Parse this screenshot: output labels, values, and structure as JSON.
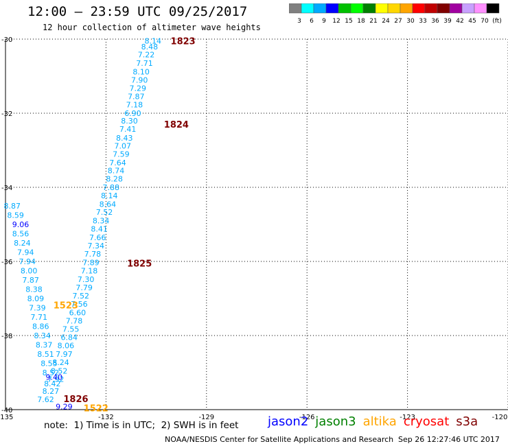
{
  "header": {
    "title": "12:00 — 23:59 UTC 09/25/2017",
    "subtitle": "12 hour collection of altimeter wave heights"
  },
  "colorbar": {
    "colors": [
      "#808080",
      "#00ffff",
      "#00aaff",
      "#0000ff",
      "#00c000",
      "#00ff00",
      "#008000",
      "#ffff00",
      "#ffd700",
      "#ffa500",
      "#ff0000",
      "#c00000",
      "#800000",
      "#a000a0",
      "#c8a0ff",
      "#ff90ff",
      "#000000"
    ],
    "labels": [
      "3",
      "6",
      "9",
      "12",
      "15",
      "18",
      "21",
      "24",
      "27",
      "30",
      "33",
      "36",
      "39",
      "42",
      "45",
      "70",
      "(ft)"
    ]
  },
  "chart_data": {
    "type": "scatter",
    "title": "12:00 — 23:59 UTC 09/25/2017",
    "subtitle": "12 hour collection of altimeter wave heights",
    "xlim": [
      -135,
      -120
    ],
    "ylim": [
      -40,
      -30
    ],
    "x_ticks": [
      "-135",
      "-132",
      "-129",
      "-126",
      "-123",
      "-120"
    ],
    "y_ticks": [
      "-30",
      "-32",
      "-34",
      "-36",
      "-38",
      "-40"
    ],
    "grid": true,
    "points": [
      {
        "x": -130.6,
        "y": -30.05,
        "v": "8.14",
        "c": "#00aaff"
      },
      {
        "x": -130.7,
        "y": -30.2,
        "v": "8.48",
        "c": "#00aaff"
      },
      {
        "x": -130.8,
        "y": -30.42,
        "v": "7.22",
        "c": "#00aaff"
      },
      {
        "x": -130.85,
        "y": -30.65,
        "v": "7.71",
        "c": "#00aaff"
      },
      {
        "x": -130.95,
        "y": -30.88,
        "v": "8.10",
        "c": "#00aaff"
      },
      {
        "x": -131.0,
        "y": -31.1,
        "v": "7.90",
        "c": "#00aaff"
      },
      {
        "x": -131.05,
        "y": -31.32,
        "v": "7.29",
        "c": "#00aaff"
      },
      {
        "x": -131.1,
        "y": -31.55,
        "v": "7.87",
        "c": "#00aaff"
      },
      {
        "x": -131.15,
        "y": -31.77,
        "v": "7.18",
        "c": "#00aaff"
      },
      {
        "x": -131.2,
        "y": -32.0,
        "v": "6.90",
        "c": "#00aaff"
      },
      {
        "x": -131.3,
        "y": -32.2,
        "v": "8.30",
        "c": "#00aaff"
      },
      {
        "x": -131.35,
        "y": -32.43,
        "v": "7.41",
        "c": "#00aaff"
      },
      {
        "x": -131.45,
        "y": -32.67,
        "v": "8.43",
        "c": "#00aaff"
      },
      {
        "x": -131.5,
        "y": -32.88,
        "v": "7.07",
        "c": "#00aaff"
      },
      {
        "x": -131.55,
        "y": -33.1,
        "v": "7.59",
        "c": "#00aaff"
      },
      {
        "x": -131.65,
        "y": -33.33,
        "v": "7.64",
        "c": "#00aaff"
      },
      {
        "x": -131.7,
        "y": -33.55,
        "v": "8.74",
        "c": "#00aaff"
      },
      {
        "x": -131.75,
        "y": -33.77,
        "v": "8.28",
        "c": "#00aaff"
      },
      {
        "x": -131.85,
        "y": -34.0,
        "v": "7.88",
        "c": "#00aaff"
      },
      {
        "x": -131.9,
        "y": -34.22,
        "v": "8.14",
        "c": "#00aaff"
      },
      {
        "x": -131.95,
        "y": -34.45,
        "v": "8.64",
        "c": "#00aaff"
      },
      {
        "x": -132.05,
        "y": -34.67,
        "v": "7.52",
        "c": "#00aaff"
      },
      {
        "x": -132.15,
        "y": -34.9,
        "v": "8.34",
        "c": "#00aaff"
      },
      {
        "x": -132.2,
        "y": -35.12,
        "v": "8.41",
        "c": "#00aaff"
      },
      {
        "x": -132.25,
        "y": -35.35,
        "v": "7.66",
        "c": "#00aaff"
      },
      {
        "x": -132.3,
        "y": -35.57,
        "v": "7.34",
        "c": "#00aaff"
      },
      {
        "x": -132.4,
        "y": -35.8,
        "v": "7.78",
        "c": "#00aaff"
      },
      {
        "x": -132.45,
        "y": -36.03,
        "v": "7.89",
        "c": "#00aaff"
      },
      {
        "x": -132.5,
        "y": -36.25,
        "v": "7.18",
        "c": "#00aaff"
      },
      {
        "x": -132.6,
        "y": -36.48,
        "v": "7.30",
        "c": "#00aaff"
      },
      {
        "x": -132.65,
        "y": -36.7,
        "v": "7.79",
        "c": "#00aaff"
      },
      {
        "x": -132.75,
        "y": -36.93,
        "v": "7.52",
        "c": "#00aaff"
      },
      {
        "x": -132.8,
        "y": -37.15,
        "v": "7.56",
        "c": "#00aaff"
      },
      {
        "x": -132.85,
        "y": -37.38,
        "v": "6.60",
        "c": "#00aaff"
      },
      {
        "x": -132.95,
        "y": -37.6,
        "v": "7.78",
        "c": "#00aaff"
      },
      {
        "x": -133.05,
        "y": -37.82,
        "v": "7.55",
        "c": "#00aaff"
      },
      {
        "x": -133.1,
        "y": -38.05,
        "v": "6.84",
        "c": "#00aaff"
      },
      {
        "x": -133.2,
        "y": -38.27,
        "v": "8.06",
        "c": "#00aaff"
      },
      {
        "x": -133.25,
        "y": -38.5,
        "v": "7.97",
        "c": "#00aaff"
      },
      {
        "x": -133.35,
        "y": -38.72,
        "v": "8.24",
        "c": "#00aaff"
      },
      {
        "x": -133.4,
        "y": -38.95,
        "v": "8.52",
        "c": "#00aaff"
      },
      {
        "x": -133.5,
        "y": -39.18,
        "v": "7.92",
        "c": "#00aaff"
      },
      {
        "x": -134.8,
        "y": -34.5,
        "v": "8.87",
        "c": "#00aaff"
      },
      {
        "x": -134.7,
        "y": -34.75,
        "v": "8.59",
        "c": "#00aaff"
      },
      {
        "x": -134.55,
        "y": -35.0,
        "v": "9.06",
        "c": "#0000ff"
      },
      {
        "x": -134.55,
        "y": -35.25,
        "v": "8.56",
        "c": "#00aaff"
      },
      {
        "x": -134.5,
        "y": -35.5,
        "v": "8.24",
        "c": "#00aaff"
      },
      {
        "x": -134.4,
        "y": -35.75,
        "v": "7.94",
        "c": "#00aaff"
      },
      {
        "x": -134.35,
        "y": -36.0,
        "v": "7.94",
        "c": "#00aaff"
      },
      {
        "x": -134.3,
        "y": -36.25,
        "v": "8.00",
        "c": "#00aaff"
      },
      {
        "x": -134.25,
        "y": -36.5,
        "v": "7.87",
        "c": "#00aaff"
      },
      {
        "x": -134.15,
        "y": -36.75,
        "v": "8.38",
        "c": "#00aaff"
      },
      {
        "x": -134.1,
        "y": -37.0,
        "v": "8.09",
        "c": "#00aaff"
      },
      {
        "x": -134.05,
        "y": -37.25,
        "v": "7.39",
        "c": "#00aaff"
      },
      {
        "x": -134.0,
        "y": -37.5,
        "v": "7.71",
        "c": "#00aaff"
      },
      {
        "x": -133.95,
        "y": -37.75,
        "v": "8.86",
        "c": "#00aaff"
      },
      {
        "x": -133.9,
        "y": -38.0,
        "v": "8.34",
        "c": "#00aaff"
      },
      {
        "x": -133.85,
        "y": -38.25,
        "v": "8.37",
        "c": "#00aaff"
      },
      {
        "x": -133.8,
        "y": -38.5,
        "v": "8.51",
        "c": "#00aaff"
      },
      {
        "x": -133.7,
        "y": -38.75,
        "v": "8.55",
        "c": "#00aaff"
      },
      {
        "x": -133.65,
        "y": -39.0,
        "v": "8.52",
        "c": "#00aaff"
      },
      {
        "x": -133.55,
        "y": -39.12,
        "v": "9.40",
        "c": "#0000ff"
      },
      {
        "x": -133.6,
        "y": -39.3,
        "v": "8.42",
        "c": "#00aaff"
      },
      {
        "x": -133.65,
        "y": -39.5,
        "v": "8.27",
        "c": "#00aaff"
      },
      {
        "x": -133.8,
        "y": -39.72,
        "v": "7.62",
        "c": "#00aaff"
      },
      {
        "x": -133.25,
        "y": -39.92,
        "v": "9.29",
        "c": "#0000ff"
      }
    ],
    "time_labels": [
      {
        "x": -129.7,
        "y": -30.05,
        "text": "1823",
        "c": "#800000"
      },
      {
        "x": -129.9,
        "y": -32.3,
        "text": "1824",
        "c": "#800000"
      },
      {
        "x": -131.0,
        "y": -36.05,
        "text": "1825",
        "c": "#800000"
      },
      {
        "x": -133.2,
        "y": -37.18,
        "text": "1523",
        "c": "#ffa500"
      },
      {
        "x": -132.9,
        "y": -39.7,
        "text": "1826",
        "c": "#800000"
      },
      {
        "x": -132.3,
        "y": -39.95,
        "text": "1522",
        "c": "#ffa500"
      }
    ]
  },
  "footer": {
    "note": "note:  1) Time is in UTC;  2) SWH is in feet",
    "credit": "NOAA/NESDIS Center for Satellite Applications and Research",
    "timestamp": "Sep 26 12:27:46 UTC 2017"
  },
  "legend": [
    {
      "name": "jason2",
      "color": "#0000ff"
    },
    {
      "name": "jason3",
      "color": "#008000"
    },
    {
      "name": "altika",
      "color": "#ffa500"
    },
    {
      "name": "cryosat",
      "color": "#ff0000"
    },
    {
      "name": "s3a",
      "color": "#800000"
    }
  ]
}
